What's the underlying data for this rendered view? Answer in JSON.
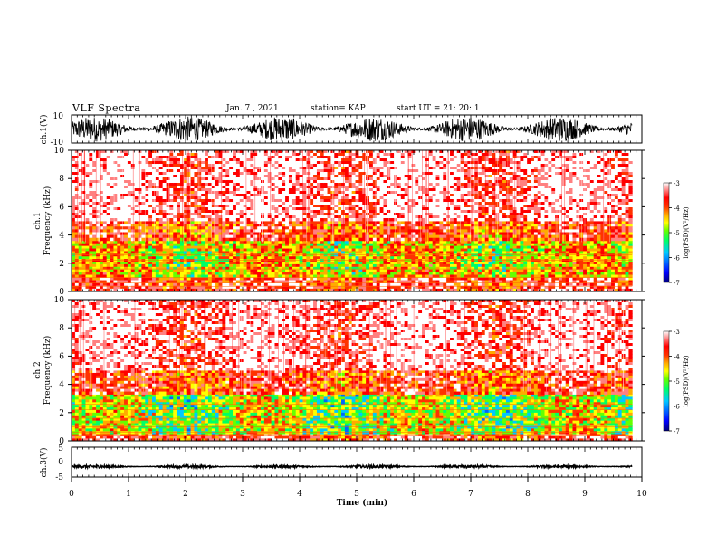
{
  "header": {
    "title": "VLF  Spectra",
    "date": "Jan. 7  , 2021",
    "station": "station= KAP",
    "start": "start  UT =   21: 20: 1"
  },
  "chart_data": [
    {
      "type": "line",
      "panel": "ch1-waveform",
      "ylabel": "ch.1(V)",
      "ylim": [
        -10,
        10
      ],
      "ytick_labels": [
        "10",
        "-10"
      ],
      "description_values": {
        "amplitude_range": [
          -9,
          9
        ]
      }
    },
    {
      "type": "heatmap",
      "panel": "ch1-spectrogram",
      "ylabel": "ch.1\nFrequency  (kHz)",
      "ylim": [
        0,
        10
      ],
      "ytick_labels": [
        "0",
        "2",
        "4",
        "6",
        "8",
        "10"
      ],
      "colorbar": {
        "label": "log(PSD)(V²/Hz)",
        "range": [
          -7,
          -3
        ],
        "tick_labels": [
          "-3",
          "-4",
          "-5",
          "-6",
          "-7"
        ]
      },
      "bands_khz": [
        {
          "range": [
            0,
            1.0
          ],
          "level": -3.8
        },
        {
          "range": [
            1.0,
            3.6
          ],
          "level": -4.7
        },
        {
          "range": [
            3.6,
            5.0
          ],
          "level": -4.0
        },
        {
          "range": [
            5.0,
            10
          ],
          "level": -3.3
        }
      ]
    },
    {
      "type": "heatmap",
      "panel": "ch2-spectrogram",
      "ylabel": "ch.2\nFrequency  (kHz)",
      "ylim": [
        0,
        10
      ],
      "ytick_labels": [
        "0",
        "2",
        "4",
        "6",
        "8",
        "10"
      ],
      "colorbar": {
        "label": "log(PSD)(V²/Hz)",
        "range": [
          -7,
          -3
        ],
        "tick_labels": [
          "-3",
          "-4",
          "-5",
          "-6",
          "-7"
        ]
      },
      "bands_khz": [
        {
          "range": [
            0,
            0.5
          ],
          "level": -3.8
        },
        {
          "range": [
            0.5,
            3.3
          ],
          "level": -5.0
        },
        {
          "range": [
            3.3,
            5.0
          ],
          "level": -4.0
        },
        {
          "range": [
            5.0,
            10
          ],
          "level": -3.3
        }
      ]
    },
    {
      "type": "line",
      "panel": "ch3-waveform",
      "ylabel": "ch.3(V)",
      "ylim": [
        -5,
        5
      ],
      "ytick_labels": [
        "5",
        "0",
        "-5"
      ],
      "description_values": {
        "amplitude_range": [
          -2.0,
          -1.0
        ]
      }
    }
  ],
  "xaxis": {
    "label": "Time  (min)",
    "xlim": [
      0,
      10
    ],
    "data_end": 9.83,
    "tick_labels": [
      "0",
      "1",
      "2",
      "3",
      "4",
      "5",
      "6",
      "7",
      "8",
      "9",
      "10"
    ]
  },
  "colors": {
    "colormap": [
      "#00007a",
      "#0000ff",
      "#0066ff",
      "#00c8ff",
      "#00ff66",
      "#66ff00",
      "#ffff00",
      "#ffaa00",
      "#ff3300",
      "#ff0000",
      "#ff8080",
      "#ffffff"
    ]
  }
}
